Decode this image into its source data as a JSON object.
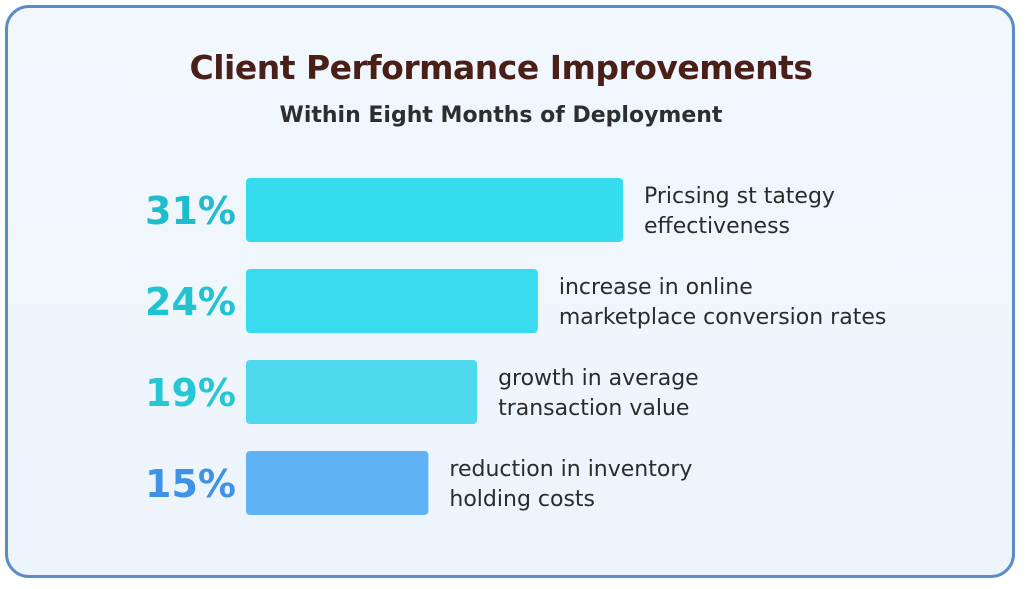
{
  "chart_data": {
    "type": "bar",
    "orientation": "horizontal",
    "title": "Client Performance Improvements",
    "subtitle": "Within Eight Months of Deployment",
    "unit": "%",
    "bars": [
      {
        "value": 31,
        "value_label": "31%",
        "label_lines": [
          "Pricsing st tategy",
          "effectiveness"
        ],
        "bar_color": "#34dcee",
        "text_color": "#1ebccc"
      },
      {
        "value": 24,
        "value_label": "24%",
        "label_lines": [
          "increase in online",
          "marketplace conversion rates"
        ],
        "bar_color": "#38dcee",
        "text_color": "#21c3d1"
      },
      {
        "value": 19,
        "value_label": "19%",
        "label_lines": [
          "growth in average",
          "transaction value"
        ],
        "bar_color": "#4ed9ef",
        "text_color": "#25c7d6"
      },
      {
        "value": 15,
        "value_label": "15%",
        "label_lines": [
          "reduction in inventory",
          "holding costs"
        ],
        "bar_color": "#5fb3f5",
        "text_color": "#3e93e6"
      }
    ]
  }
}
